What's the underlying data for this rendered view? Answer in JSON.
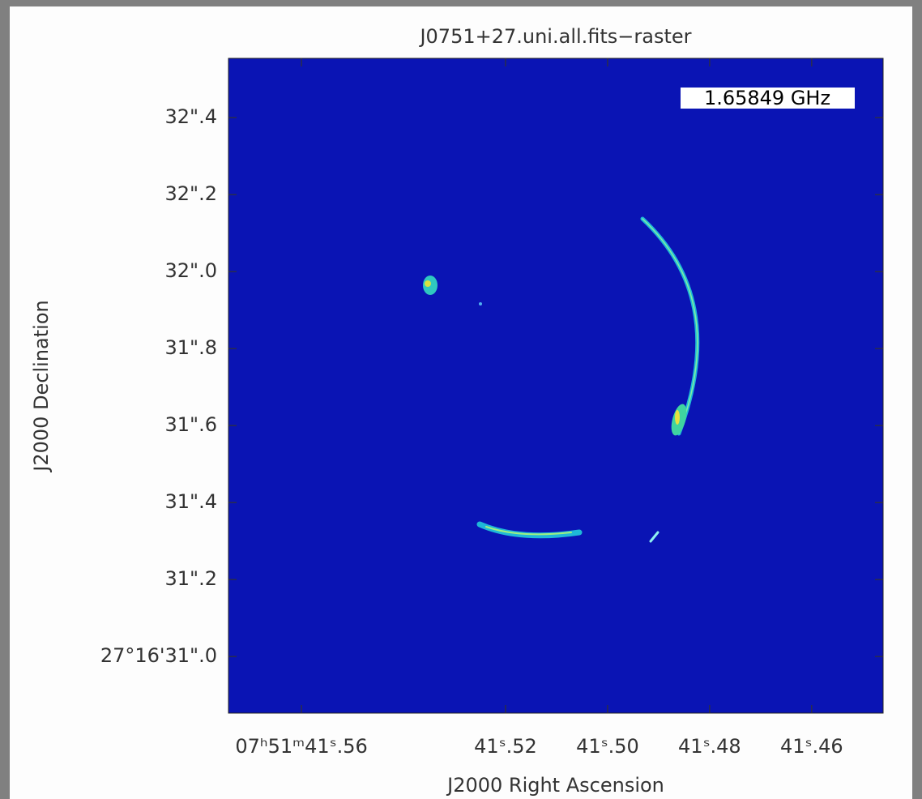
{
  "chart_data": {
    "type": "raster",
    "title": "J0751+27.uni.all.fits−raster",
    "annotation": "1.65849  GHz",
    "xlabel": "J2000 Right Ascension",
    "ylabel": "J2000 Declination",
    "xlim": [
      41.5743,
      41.446
    ],
    "ylim": [
      30.853,
      32.554
    ],
    "xticks": [
      {
        "value": 41.56,
        "label": "07ʰ51ᵐ41ˢ.56"
      },
      {
        "value": 41.52,
        "label": "41ˢ.52"
      },
      {
        "value": 41.5,
        "label": "41ˢ.50"
      },
      {
        "value": 41.48,
        "label": "41ˢ.48"
      },
      {
        "value": 41.46,
        "label": "41ˢ.46"
      }
    ],
    "yticks": [
      {
        "value": 32.4,
        "label": "32\".4"
      },
      {
        "value": 32.2,
        "label": "32\".2"
      },
      {
        "value": 32.0,
        "label": "32\".0"
      },
      {
        "value": 31.8,
        "label": "31\".8"
      },
      {
        "value": 31.6,
        "label": "31\".6"
      },
      {
        "value": 31.4,
        "label": "31\".4"
      },
      {
        "value": 31.2,
        "label": "31\".2"
      },
      {
        "value": 31.0,
        "label": "27°16'31\".0"
      }
    ],
    "color": "#0a14b4",
    "grid": false
  }
}
